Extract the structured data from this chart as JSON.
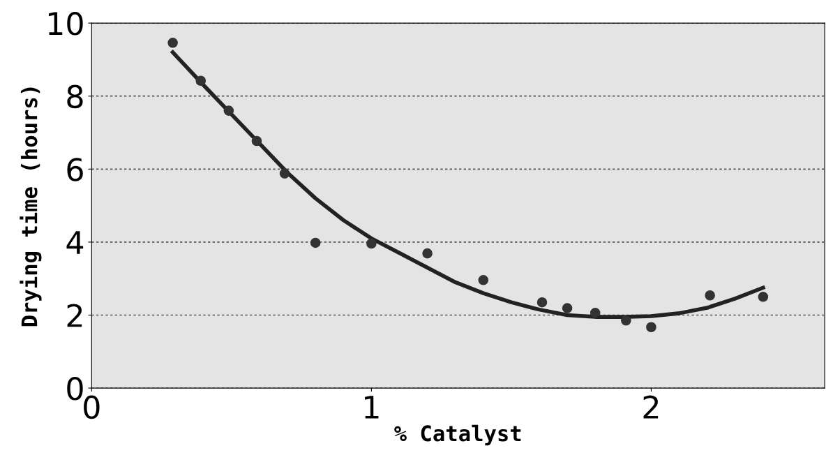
{
  "chart_data": {
    "type": "scatter",
    "xlabel": "% Catalyst",
    "ylabel": "Drying time (hours)",
    "xlim": [
      0,
      2.62
    ],
    "ylim": [
      0,
      10
    ],
    "xticks": [
      0,
      1,
      2
    ],
    "yticks": [
      0,
      2,
      4,
      6,
      8,
      10
    ],
    "grid": "y",
    "series": [
      {
        "marker": "circle",
        "color": "#333333",
        "x": [
          0.29,
          0.39,
          0.49,
          0.59,
          0.69,
          0.8,
          1.0,
          1.2,
          1.4,
          1.61,
          1.7,
          1.8,
          1.91,
          2.0,
          2.21,
          2.4
        ],
        "values": [
          9.46,
          8.42,
          7.6,
          6.77,
          5.88,
          3.98,
          3.96,
          3.69,
          2.96,
          2.35,
          2.19,
          2.06,
          1.85,
          1.67,
          2.54,
          2.5
        ]
      },
      {
        "type": "line",
        "color": "#222222",
        "line_style": "solid",
        "x": [
          0.29,
          0.4,
          0.5,
          0.6,
          0.7,
          0.8,
          0.9,
          1.0,
          1.1,
          1.2,
          1.3,
          1.4,
          1.5,
          1.6,
          1.7,
          1.8,
          1.9,
          2.0,
          2.1,
          2.2,
          2.3,
          2.4
        ],
        "values": [
          9.2,
          8.3,
          7.5,
          6.7,
          5.9,
          5.2,
          4.6,
          4.1,
          3.7,
          3.3,
          2.9,
          2.6,
          2.35,
          2.15,
          2.0,
          1.95,
          1.95,
          1.97,
          2.05,
          2.2,
          2.45,
          2.75
        ]
      }
    ]
  }
}
